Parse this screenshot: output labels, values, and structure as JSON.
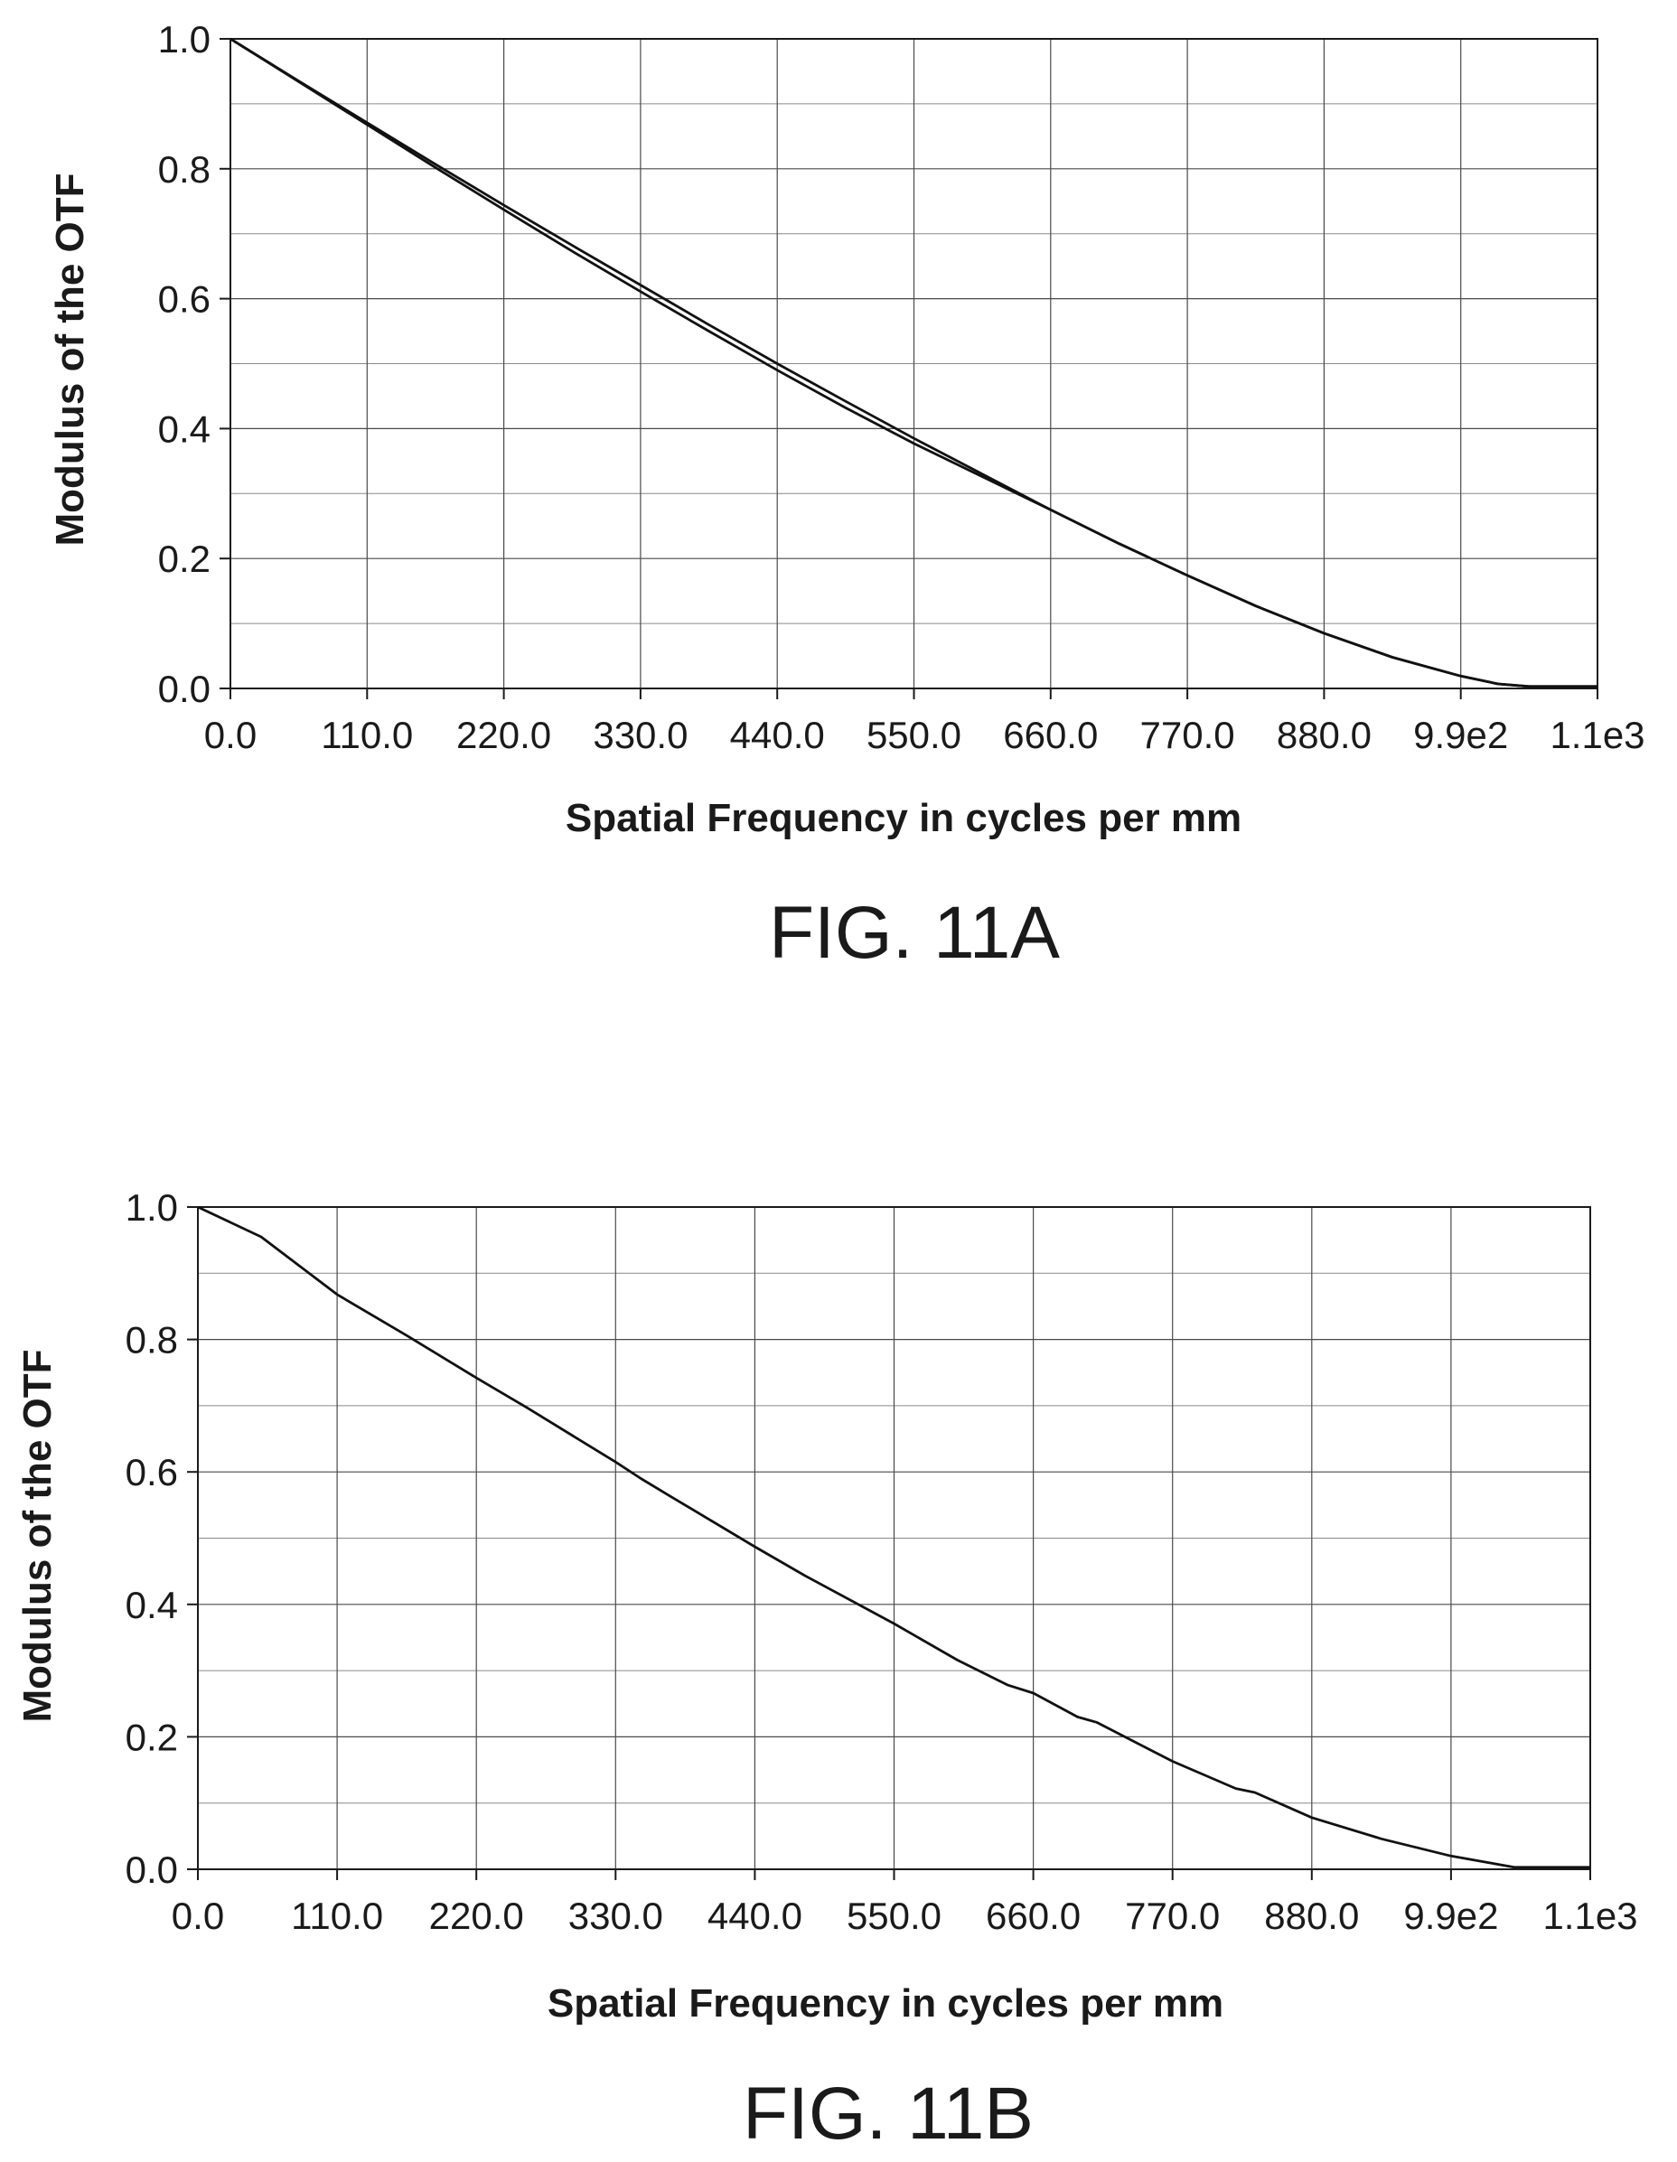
{
  "chart_data": [
    {
      "type": "line",
      "caption": "FIG. 11A",
      "xlabel": "Spatial Frequency in cycles per mm",
      "ylabel": "Modulus of the OTF",
      "xlim": [
        0,
        1100
      ],
      "ylim": [
        0,
        1.0
      ],
      "x_tick_labels": [
        "0.0",
        "110.0",
        "220.0",
        "330.0",
        "440.0",
        "550.0",
        "660.0",
        "770.0",
        "880.0",
        "9.9e2",
        "1.1e3"
      ],
      "y_tick_labels": [
        "0.0",
        "0.2",
        "0.4",
        "0.6",
        "0.8",
        "1.0"
      ],
      "grid": true,
      "series": [
        {
          "x": [
            0,
            55,
            110,
            165,
            220,
            275,
            330,
            385,
            440,
            495,
            550,
            605,
            660,
            715,
            770,
            825,
            880,
            935,
            990,
            1020,
            1045,
            1100
          ],
          "y": [
            1.0,
            0.935,
            0.871,
            0.807,
            0.744,
            0.682,
            0.621,
            0.56,
            0.5,
            0.442,
            0.385,
            0.33,
            0.275,
            0.223,
            0.174,
            0.127,
            0.085,
            0.048,
            0.019,
            0.007,
            0.003,
            0.003
          ]
        },
        {
          "x": [
            0,
            55,
            110,
            165,
            220,
            275,
            330,
            385,
            440,
            495,
            550,
            605,
            660,
            715,
            770,
            825,
            880,
            935,
            990,
            1020,
            1045,
            1100
          ],
          "y": [
            1.0,
            0.934,
            0.868,
            0.802,
            0.737,
            0.673,
            0.611,
            0.55,
            0.49,
            0.432,
            0.377,
            0.326,
            0.275,
            0.223,
            0.174,
            0.127,
            0.085,
            0.048,
            0.019,
            0.007,
            0.003,
            0.003
          ]
        }
      ]
    },
    {
      "type": "line",
      "caption": "FIG. 11B",
      "xlabel": "Spatial Frequency in cycles per mm",
      "ylabel": "Modulus of the OTF",
      "xlim": [
        0,
        1100
      ],
      "ylim": [
        0,
        1.0
      ],
      "x_tick_labels": [
        "0.0",
        "110.0",
        "220.0",
        "330.0",
        "440.0",
        "550.0",
        "660.0",
        "770.0",
        "880.0",
        "9.9e2",
        "1.1e3"
      ],
      "y_tick_labels": [
        "0.0",
        "0.2",
        "0.4",
        "0.6",
        "0.8",
        "1.0"
      ],
      "grid": true,
      "series": [
        {
          "x": [
            0,
            50,
            110,
            165,
            220,
            260,
            330,
            350,
            370,
            440,
            480,
            550,
            600,
            640,
            660,
            695,
            710,
            770,
            820,
            835,
            880,
            935,
            990,
            1020,
            1040,
            1100
          ],
          "y": [
            1.0,
            0.955,
            0.868,
            0.806,
            0.742,
            0.697,
            0.615,
            0.59,
            0.567,
            0.487,
            0.443,
            0.371,
            0.316,
            0.278,
            0.266,
            0.23,
            0.222,
            0.163,
            0.122,
            0.116,
            0.078,
            0.046,
            0.02,
            0.01,
            0.003,
            0.003
          ]
        }
      ]
    }
  ]
}
